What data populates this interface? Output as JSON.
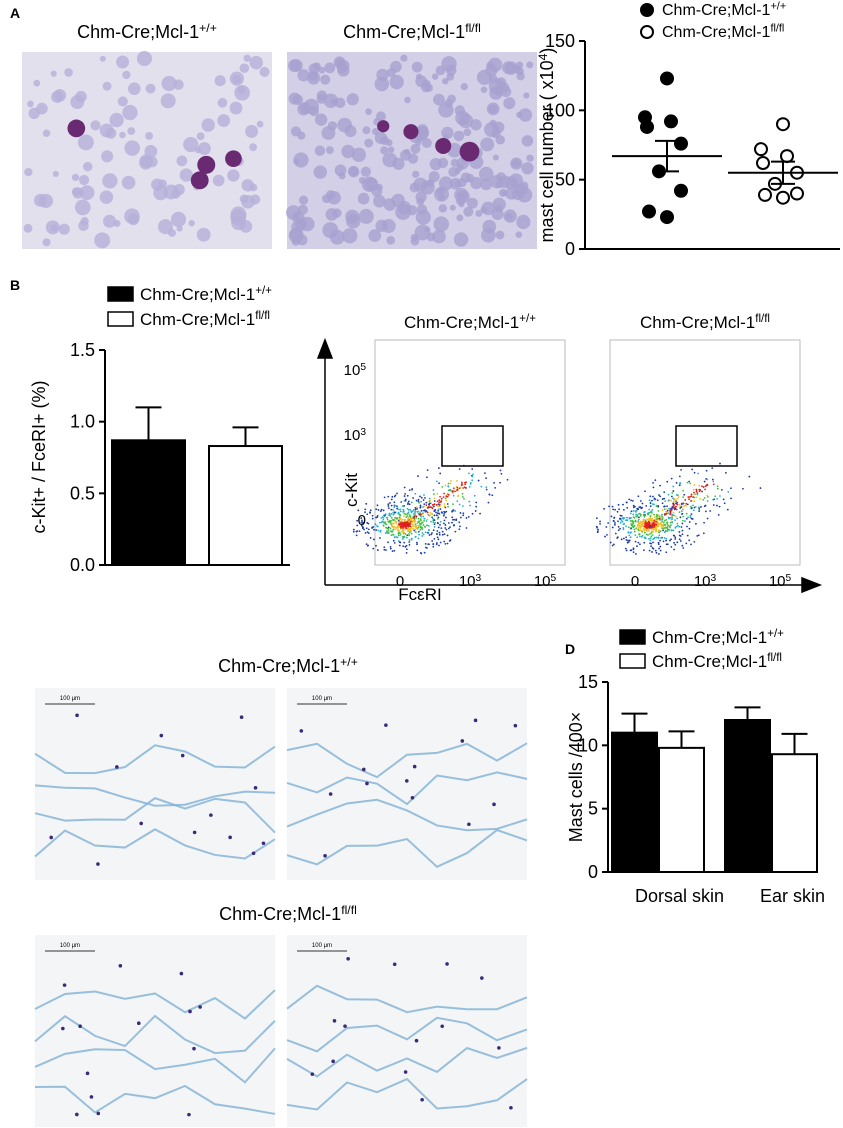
{
  "panel_labels": [
    "A",
    "B",
    "D"
  ],
  "micrographs": [
    {
      "base": "Chm-Cre;Mcl-1",
      "sup": "+/+"
    },
    {
      "base": "Chm-Cre;Mcl-1",
      "sup": "fl/fl"
    }
  ],
  "flow": {
    "titles": [
      {
        "base": "Chm-Cre;Mcl-1",
        "sup": "+/+"
      },
      {
        "base": "Chm-Cre;Mcl-1",
        "sup": "fl/fl"
      }
    ],
    "y_label": "c-Kit",
    "x_label": "FcεRI",
    "ticks": [
      {
        "base": "0"
      },
      {
        "base": "10",
        "sup": "3"
      },
      {
        "base": "10",
        "sup": "5"
      }
    ]
  },
  "sections": {
    "titles": [
      {
        "base": "Chm-Cre;Mcl-1",
        "sup": "+/+"
      },
      {
        "base": "Chm-Cre;Mcl-1",
        "sup": "fl/fl"
      }
    ],
    "scale_bar": "100 μm"
  },
  "chart_data": [
    {
      "type": "scatter",
      "y_label": "mast cell number ( x10",
      "y_label_sup": "4",
      "y_label_end": ")",
      "categories": [
        null,
        null
      ],
      "ylim": [
        0,
        150
      ],
      "yticks": [
        0,
        50,
        100,
        150
      ],
      "series": [
        {
          "name": "Chm-Cre;Mcl-1",
          "name_sup": "+/+",
          "color": "#000000",
          "filled": true,
          "values": [
            123,
            95,
            92,
            88,
            76,
            56,
            42,
            27,
            23
          ],
          "mean": 67,
          "sem": 11
        },
        {
          "name": "Chm-Cre;Mcl-1",
          "name_sup": "fl/fl",
          "color": "#000000",
          "filled": false,
          "values": [
            90,
            72,
            67,
            62,
            55,
            47,
            40,
            39,
            37
          ],
          "mean": 55,
          "sem": 8
        }
      ]
    },
    {
      "type": "bar",
      "y_label": "c-Kit+ / FceRI+ (%)",
      "categories": [
        null
      ],
      "ylim": [
        0,
        1.5
      ],
      "yticks": [
        {
          "value": 0,
          "label": "0.0"
        },
        0.5,
        {
          "value": 1,
          "label": "1.0"
        },
        1.5
      ],
      "series": [
        {
          "name": "Chm-Cre;Mcl-1",
          "name_sup": "+/+",
          "color": "#000000",
          "values": [
            0.87
          ],
          "errors": [
            0.23
          ]
        },
        {
          "name": "Chm-Cre;Mcl-1",
          "name_sup": "fl/fl",
          "color": "#ffffff",
          "values": [
            0.83
          ],
          "errors": [
            0.13
          ]
        }
      ]
    },
    {
      "type": "bar",
      "y_label": "Mast cells /400×",
      "categories": [
        "Dorsal skin",
        "Ear skin"
      ],
      "ylim": [
        0,
        15
      ],
      "yticks": [
        0,
        5,
        10,
        15
      ],
      "series": [
        {
          "name": "Chm-Cre;Mcl-1",
          "name_sup": "+/+",
          "color": "#000000",
          "values": [
            11,
            12
          ],
          "errors": [
            1.5,
            1.0
          ]
        },
        {
          "name": "Chm-Cre;Mcl-1",
          "name_sup": "fl/fl",
          "color": "#ffffff",
          "values": [
            9.8,
            9.3
          ],
          "errors": [
            1.3,
            1.6
          ]
        }
      ]
    }
  ]
}
